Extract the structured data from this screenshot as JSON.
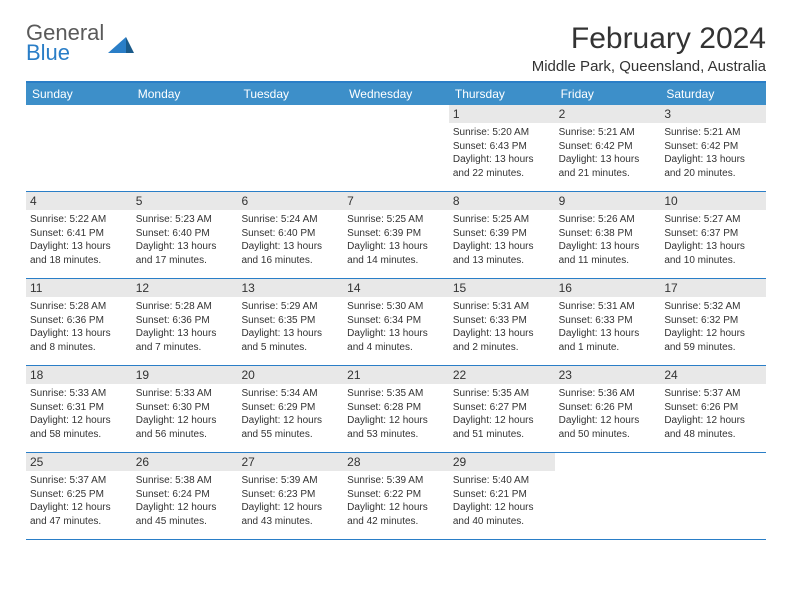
{
  "logo": {
    "word1": "General",
    "word2": "Blue"
  },
  "title": "February 2024",
  "location": "Middle Park, Queensland, Australia",
  "colors": {
    "header_bar": "#3d8fc9",
    "border": "#2a7ec7",
    "daynum_bg": "#e8e8e8",
    "logo_gray": "#5a5a5a",
    "logo_blue": "#2a7ec7"
  },
  "weekdays": [
    "Sunday",
    "Monday",
    "Tuesday",
    "Wednesday",
    "Thursday",
    "Friday",
    "Saturday"
  ],
  "weeks": [
    [
      {
        "n": "",
        "sr": "",
        "ss": "",
        "dl": ""
      },
      {
        "n": "",
        "sr": "",
        "ss": "",
        "dl": ""
      },
      {
        "n": "",
        "sr": "",
        "ss": "",
        "dl": ""
      },
      {
        "n": "",
        "sr": "",
        "ss": "",
        "dl": ""
      },
      {
        "n": "1",
        "sr": "Sunrise: 5:20 AM",
        "ss": "Sunset: 6:43 PM",
        "dl": "Daylight: 13 hours and 22 minutes."
      },
      {
        "n": "2",
        "sr": "Sunrise: 5:21 AM",
        "ss": "Sunset: 6:42 PM",
        "dl": "Daylight: 13 hours and 21 minutes."
      },
      {
        "n": "3",
        "sr": "Sunrise: 5:21 AM",
        "ss": "Sunset: 6:42 PM",
        "dl": "Daylight: 13 hours and 20 minutes."
      }
    ],
    [
      {
        "n": "4",
        "sr": "Sunrise: 5:22 AM",
        "ss": "Sunset: 6:41 PM",
        "dl": "Daylight: 13 hours and 18 minutes."
      },
      {
        "n": "5",
        "sr": "Sunrise: 5:23 AM",
        "ss": "Sunset: 6:40 PM",
        "dl": "Daylight: 13 hours and 17 minutes."
      },
      {
        "n": "6",
        "sr": "Sunrise: 5:24 AM",
        "ss": "Sunset: 6:40 PM",
        "dl": "Daylight: 13 hours and 16 minutes."
      },
      {
        "n": "7",
        "sr": "Sunrise: 5:25 AM",
        "ss": "Sunset: 6:39 PM",
        "dl": "Daylight: 13 hours and 14 minutes."
      },
      {
        "n": "8",
        "sr": "Sunrise: 5:25 AM",
        "ss": "Sunset: 6:39 PM",
        "dl": "Daylight: 13 hours and 13 minutes."
      },
      {
        "n": "9",
        "sr": "Sunrise: 5:26 AM",
        "ss": "Sunset: 6:38 PM",
        "dl": "Daylight: 13 hours and 11 minutes."
      },
      {
        "n": "10",
        "sr": "Sunrise: 5:27 AM",
        "ss": "Sunset: 6:37 PM",
        "dl": "Daylight: 13 hours and 10 minutes."
      }
    ],
    [
      {
        "n": "11",
        "sr": "Sunrise: 5:28 AM",
        "ss": "Sunset: 6:36 PM",
        "dl": "Daylight: 13 hours and 8 minutes."
      },
      {
        "n": "12",
        "sr": "Sunrise: 5:28 AM",
        "ss": "Sunset: 6:36 PM",
        "dl": "Daylight: 13 hours and 7 minutes."
      },
      {
        "n": "13",
        "sr": "Sunrise: 5:29 AM",
        "ss": "Sunset: 6:35 PM",
        "dl": "Daylight: 13 hours and 5 minutes."
      },
      {
        "n": "14",
        "sr": "Sunrise: 5:30 AM",
        "ss": "Sunset: 6:34 PM",
        "dl": "Daylight: 13 hours and 4 minutes."
      },
      {
        "n": "15",
        "sr": "Sunrise: 5:31 AM",
        "ss": "Sunset: 6:33 PM",
        "dl": "Daylight: 13 hours and 2 minutes."
      },
      {
        "n": "16",
        "sr": "Sunrise: 5:31 AM",
        "ss": "Sunset: 6:33 PM",
        "dl": "Daylight: 13 hours and 1 minute."
      },
      {
        "n": "17",
        "sr": "Sunrise: 5:32 AM",
        "ss": "Sunset: 6:32 PM",
        "dl": "Daylight: 12 hours and 59 minutes."
      }
    ],
    [
      {
        "n": "18",
        "sr": "Sunrise: 5:33 AM",
        "ss": "Sunset: 6:31 PM",
        "dl": "Daylight: 12 hours and 58 minutes."
      },
      {
        "n": "19",
        "sr": "Sunrise: 5:33 AM",
        "ss": "Sunset: 6:30 PM",
        "dl": "Daylight: 12 hours and 56 minutes."
      },
      {
        "n": "20",
        "sr": "Sunrise: 5:34 AM",
        "ss": "Sunset: 6:29 PM",
        "dl": "Daylight: 12 hours and 55 minutes."
      },
      {
        "n": "21",
        "sr": "Sunrise: 5:35 AM",
        "ss": "Sunset: 6:28 PM",
        "dl": "Daylight: 12 hours and 53 minutes."
      },
      {
        "n": "22",
        "sr": "Sunrise: 5:35 AM",
        "ss": "Sunset: 6:27 PM",
        "dl": "Daylight: 12 hours and 51 minutes."
      },
      {
        "n": "23",
        "sr": "Sunrise: 5:36 AM",
        "ss": "Sunset: 6:26 PM",
        "dl": "Daylight: 12 hours and 50 minutes."
      },
      {
        "n": "24",
        "sr": "Sunrise: 5:37 AM",
        "ss": "Sunset: 6:26 PM",
        "dl": "Daylight: 12 hours and 48 minutes."
      }
    ],
    [
      {
        "n": "25",
        "sr": "Sunrise: 5:37 AM",
        "ss": "Sunset: 6:25 PM",
        "dl": "Daylight: 12 hours and 47 minutes."
      },
      {
        "n": "26",
        "sr": "Sunrise: 5:38 AM",
        "ss": "Sunset: 6:24 PM",
        "dl": "Daylight: 12 hours and 45 minutes."
      },
      {
        "n": "27",
        "sr": "Sunrise: 5:39 AM",
        "ss": "Sunset: 6:23 PM",
        "dl": "Daylight: 12 hours and 43 minutes."
      },
      {
        "n": "28",
        "sr": "Sunrise: 5:39 AM",
        "ss": "Sunset: 6:22 PM",
        "dl": "Daylight: 12 hours and 42 minutes."
      },
      {
        "n": "29",
        "sr": "Sunrise: 5:40 AM",
        "ss": "Sunset: 6:21 PM",
        "dl": "Daylight: 12 hours and 40 minutes."
      },
      {
        "n": "",
        "sr": "",
        "ss": "",
        "dl": ""
      },
      {
        "n": "",
        "sr": "",
        "ss": "",
        "dl": ""
      }
    ]
  ]
}
